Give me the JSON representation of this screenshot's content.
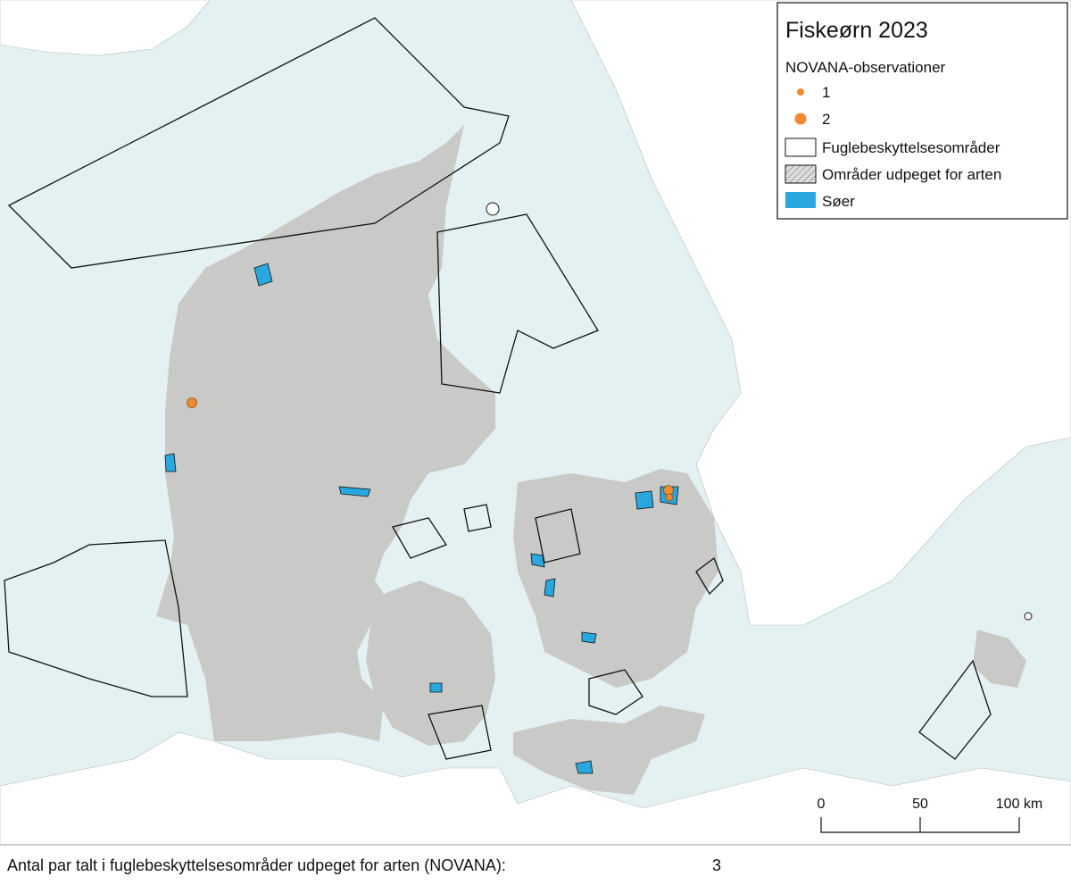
{
  "legend": {
    "title": "Fiskeørn 2023",
    "subtitle": "NOVANA-observationer",
    "items": [
      "1",
      "2",
      "Fuglebeskyttelsesområder",
      "Områder udpeget for arten",
      "Søer"
    ]
  },
  "scale_bar": {
    "labels": [
      "0",
      "50",
      "100 km"
    ]
  },
  "footer": {
    "label": "Antal par talt i fuglebeskyttelsesområder udpeget for arten (NOVANA):",
    "value": 3
  }
}
